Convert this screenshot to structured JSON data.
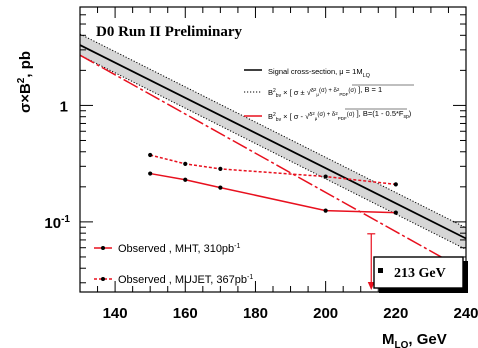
{
  "chart_data": {
    "type": "line",
    "title": "D0 Run II Preliminary",
    "xlabel": "M",
    "xlabel_sub": "LQ",
    "xlabel_unit": ", GeV",
    "ylabel_sigma": "σ×B",
    "ylabel_sup": "2",
    "ylabel_unit": ", pb",
    "x_scale": "linear",
    "y_scale": "log",
    "xlim": [
      130,
      240
    ],
    "ylim": [
      0.025,
      7
    ],
    "x_ticks": [
      140,
      160,
      180,
      200,
      220,
      240
    ],
    "y_ticks": [
      {
        "value": 1,
        "label": "1"
      },
      {
        "value": 0.1,
        "label": "10",
        "sup": "-1"
      }
    ],
    "theory": {
      "x": [
        130,
        240
      ],
      "central": [
        3.3,
        0.072
      ],
      "upper": [
        4.1,
        0.089
      ],
      "lower": [
        2.7,
        0.058
      ],
      "b_lower": [
        2.7,
        0.038
      ]
    },
    "series": [
      {
        "name": "Observed , MHT,   310pb",
        "sup": "-1",
        "style": "solid",
        "color": "#e8101e",
        "x": [
          150,
          160,
          170,
          200,
          220
        ],
        "values": [
          0.26,
          0.23,
          0.197,
          0.125,
          0.12
        ]
      },
      {
        "name": "Observed , MUJET, 367pb",
        "sup": "-1",
        "style": "dashed",
        "color": "#e8101e",
        "x": [
          150,
          160,
          170,
          200,
          220
        ],
        "values": [
          0.375,
          0.315,
          0.285,
          0.245,
          0.21
        ]
      }
    ],
    "legend": {
      "placement": "top-right",
      "signal": "Signal cross-section, μ = 1M",
      "signal_sub": "LQ",
      "band_b1": "B = 1",
      "band_blow": "B=(1 - 0.5*F",
      "band_blow_sub": "sp",
      "band_blow_end": ")"
    },
    "annotation": {
      "text": "213 GeV",
      "x": 213
    },
    "colors": {
      "theory": "#000000",
      "b_lower": "#e8101e",
      "observed": "#e8101e"
    }
  }
}
